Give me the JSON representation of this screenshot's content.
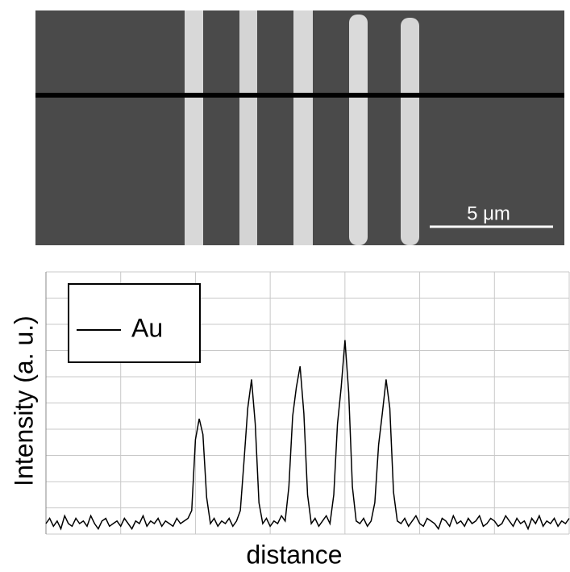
{
  "chart_data": {
    "type": "line",
    "annotations": [
      "5 μm"
    ],
    "xlabel": "distance",
    "ylabel": "Intensity (a. u.)",
    "xlim": [
      0,
      7
    ],
    "xticks": [
      0,
      1,
      2,
      3,
      4,
      5,
      6,
      7
    ],
    "ylim": [
      0,
      10
    ],
    "yticks": [
      0,
      1,
      2,
      3,
      4,
      5,
      6,
      7,
      8,
      9,
      10
    ],
    "grid": true,
    "legend": "upper left",
    "x": [
      0,
      0.05,
      0.1,
      0.15,
      0.2,
      0.25,
      0.3,
      0.35,
      0.4,
      0.45,
      0.5,
      0.55,
      0.6,
      0.65,
      0.7,
      0.75,
      0.8,
      0.85,
      0.9,
      0.95,
      1,
      1.05,
      1.1,
      1.15,
      1.2,
      1.25,
      1.3,
      1.35,
      1.4,
      1.45,
      1.5,
      1.55,
      1.6,
      1.65,
      1.7,
      1.75,
      1.8,
      1.85,
      1.9,
      1.95,
      2,
      2.05,
      2.1,
      2.15,
      2.2,
      2.25,
      2.3,
      2.35,
      2.4,
      2.45,
      2.5,
      2.55,
      2.6,
      2.65,
      2.7,
      2.75,
      2.8,
      2.85,
      2.9,
      2.95,
      3,
      3.05,
      3.1,
      3.15,
      3.2,
      3.25,
      3.3,
      3.35,
      3.4,
      3.45,
      3.5,
      3.55,
      3.6,
      3.65,
      3.7,
      3.75,
      3.8,
      3.85,
      3.9,
      3.95,
      4,
      4.05,
      4.1,
      4.15,
      4.2,
      4.25,
      4.3,
      4.35,
      4.4,
      4.45,
      4.5,
      4.55,
      4.6,
      4.65,
      4.7,
      4.75,
      4.8,
      4.85,
      4.9,
      4.95,
      5,
      5.05,
      5.1,
      5.15,
      5.2,
      5.25,
      5.3,
      5.35,
      5.4,
      5.45,
      5.5,
      5.55,
      5.6,
      5.65,
      5.7,
      5.75,
      5.8,
      5.85,
      5.9,
      5.95,
      6,
      6.05,
      6.1,
      6.15,
      6.2,
      6.25,
      6.3,
      6.35,
      6.4,
      6.45,
      6.5,
      6.55,
      6.6,
      6.65,
      6.7,
      6.75,
      6.8,
      6.85,
      6.9,
      6.95,
      7
    ],
    "series": [
      {
        "name": "Au",
        "color": "#000000",
        "values": [
          0.4,
          0.6,
          0.3,
          0.5,
          0.2,
          0.7,
          0.4,
          0.3,
          0.6,
          0.4,
          0.5,
          0.3,
          0.7,
          0.4,
          0.2,
          0.5,
          0.6,
          0.3,
          0.4,
          0.5,
          0.3,
          0.6,
          0.4,
          0.2,
          0.5,
          0.4,
          0.7,
          0.3,
          0.5,
          0.4,
          0.6,
          0.3,
          0.5,
          0.4,
          0.3,
          0.6,
          0.4,
          0.5,
          0.6,
          0.9,
          3.6,
          4.4,
          3.8,
          1.4,
          0.4,
          0.6,
          0.3,
          0.5,
          0.4,
          0.6,
          0.3,
          0.5,
          0.9,
          2.8,
          4.8,
          5.9,
          4.2,
          1.2,
          0.4,
          0.6,
          0.3,
          0.5,
          0.4,
          0.7,
          0.5,
          1.8,
          4.5,
          5.6,
          6.4,
          4.6,
          1.5,
          0.4,
          0.6,
          0.3,
          0.5,
          0.7,
          0.4,
          1.5,
          4.2,
          5.6,
          7.4,
          5.4,
          1.8,
          0.5,
          0.4,
          0.6,
          0.3,
          0.5,
          1.2,
          3.4,
          4.6,
          5.9,
          4.8,
          1.6,
          0.5,
          0.4,
          0.6,
          0.3,
          0.5,
          0.7,
          0.4,
          0.3,
          0.6,
          0.5,
          0.4,
          0.2,
          0.6,
          0.5,
          0.3,
          0.7,
          0.4,
          0.5,
          0.3,
          0.6,
          0.4,
          0.5,
          0.7,
          0.3,
          0.4,
          0.6,
          0.5,
          0.3,
          0.4,
          0.7,
          0.5,
          0.3,
          0.6,
          0.4,
          0.5,
          0.2,
          0.6,
          0.4,
          0.7,
          0.3,
          0.5,
          0.4,
          0.6,
          0.3,
          0.5,
          0.4,
          0.6
        ]
      }
    ]
  }
}
